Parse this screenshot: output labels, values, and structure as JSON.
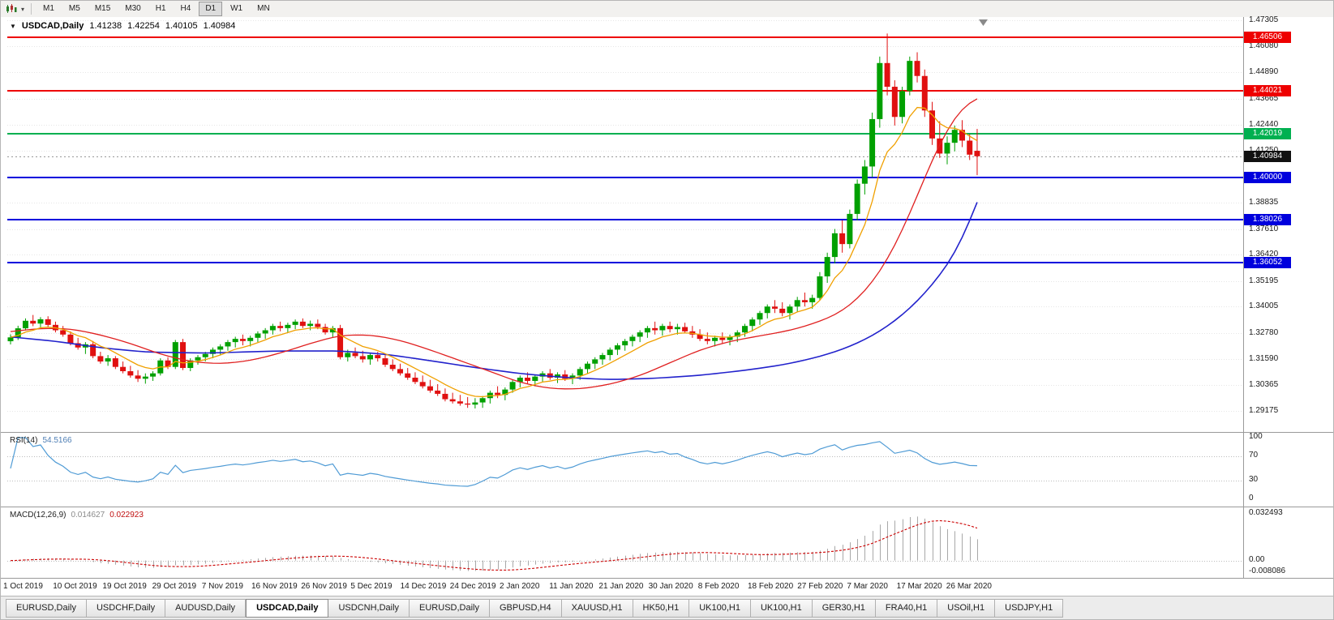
{
  "toolbar": {
    "timeframes": [
      "M1",
      "M5",
      "M15",
      "M30",
      "H1",
      "H4",
      "D1",
      "W1",
      "MN"
    ],
    "active_timeframe": "D1",
    "icons": [
      "candlestick-chart-icon",
      "dropdown-arrow-icon"
    ]
  },
  "chart": {
    "header": {
      "symbol": "USDCAD,Daily",
      "open": "1.41238",
      "high": "1.42254",
      "low": "1.40105",
      "close": "1.40984"
    },
    "price_axis_labels": [
      "1.47305",
      "1.46080",
      "1.44890",
      "1.43665",
      "1.42440",
      "1.41250",
      "1.38835",
      "1.37610",
      "1.36420",
      "1.35195",
      "1.34005",
      "1.32780",
      "1.31590",
      "1.30365",
      "1.29175"
    ],
    "hlines": [
      {
        "price": 1.46506,
        "label": "1.46506",
        "color": "#ee0000"
      },
      {
        "price": 1.44021,
        "label": "1.44021",
        "color": "#ee0000"
      },
      {
        "price": 1.42019,
        "label": "1.42019",
        "color": "#00b050"
      },
      {
        "price": 1.4,
        "label": "1.40000",
        "color": "#0000dd"
      },
      {
        "price": 1.38026,
        "label": "1.38026",
        "color": "#0000dd"
      },
      {
        "price": 1.36052,
        "label": "1.36052",
        "color": "#0000dd"
      }
    ],
    "current_price": {
      "value": 1.40984,
      "label": "1.40984",
      "badge_color": "#111111"
    },
    "colors": {
      "bull": "#00a000",
      "bear": "#e01010",
      "ma_fast": "#f0a000",
      "ma_mid": "#e02020",
      "ma_slow": "#2222cc",
      "grid": "#e6e6e6",
      "current_line": "#999999"
    }
  },
  "chart_data": {
    "type": "candlestick",
    "title": "USDCAD,Daily",
    "y_range": {
      "top": 1.47446,
      "bottom": 1.2819
    },
    "x_tick_labels": [
      "1 Oct 2019",
      "10 Oct 2019",
      "19 Oct 2019",
      "29 Oct 2019",
      "7 Nov 2019",
      "16 Nov 2019",
      "26 Nov 2019",
      "5 Dec 2019",
      "14 Dec 2019",
      "24 Dec 2019",
      "2 Jan 2020",
      "11 Jan 2020",
      "21 Jan 2020",
      "30 Jan 2020",
      "8 Feb 2020",
      "18 Feb 2020",
      "27 Feb 2020",
      "7 Mar 2020",
      "17 Mar 2020",
      "26 Mar 2020"
    ],
    "candles": [
      [
        1.324,
        1.3272,
        1.3225,
        1.3258
      ],
      [
        1.3258,
        1.3312,
        1.3246,
        1.33
      ],
      [
        1.33,
        1.3346,
        1.329,
        1.3335
      ],
      [
        1.3335,
        1.3362,
        1.331,
        1.3322
      ],
      [
        1.3322,
        1.3352,
        1.3302,
        1.3342
      ],
      [
        1.3342,
        1.3356,
        1.3306,
        1.3316
      ],
      [
        1.3316,
        1.3331,
        1.3281,
        1.3291
      ],
      [
        1.3291,
        1.3311,
        1.3261,
        1.3271
      ],
      [
        1.3271,
        1.3286,
        1.3221,
        1.3231
      ],
      [
        1.3231,
        1.3256,
        1.3201,
        1.3211
      ],
      [
        1.3211,
        1.3236,
        1.3181,
        1.3226
      ],
      [
        1.3226,
        1.3241,
        1.3161,
        1.3171
      ],
      [
        1.3171,
        1.3191,
        1.3136,
        1.3146
      ],
      [
        1.3146,
        1.3176,
        1.3126,
        1.3161
      ],
      [
        1.3161,
        1.3171,
        1.3111,
        1.3121
      ],
      [
        1.3121,
        1.3146,
        1.3091,
        1.3101
      ],
      [
        1.3101,
        1.3126,
        1.3071,
        1.3081
      ],
      [
        1.3081,
        1.3106,
        1.3051,
        1.3066
      ],
      [
        1.3066,
        1.3091,
        1.3043,
        1.3076
      ],
      [
        1.3076,
        1.3101,
        1.3056,
        1.3091
      ],
      [
        1.3091,
        1.3161,
        1.3081,
        1.3151
      ],
      [
        1.3151,
        1.3166,
        1.3111,
        1.3121
      ],
      [
        1.3121,
        1.3246,
        1.3111,
        1.3236
      ],
      [
        1.3236,
        1.3251,
        1.3106,
        1.3116
      ],
      [
        1.3116,
        1.3161,
        1.3101,
        1.3151
      ],
      [
        1.3151,
        1.3176,
        1.3131,
        1.3166
      ],
      [
        1.3166,
        1.3191,
        1.3146,
        1.3181
      ],
      [
        1.3181,
        1.3211,
        1.3161,
        1.3201
      ],
      [
        1.3201,
        1.3226,
        1.3176,
        1.3216
      ],
      [
        1.3216,
        1.3246,
        1.3196,
        1.3236
      ],
      [
        1.3236,
        1.3261,
        1.3211,
        1.3251
      ],
      [
        1.3251,
        1.3271,
        1.3221,
        1.3241
      ],
      [
        1.3241,
        1.3266,
        1.3216,
        1.3256
      ],
      [
        1.3256,
        1.3286,
        1.3236,
        1.3276
      ],
      [
        1.3276,
        1.3301,
        1.3251,
        1.3291
      ],
      [
        1.3291,
        1.3321,
        1.3271,
        1.3311
      ],
      [
        1.3311,
        1.3331,
        1.3286,
        1.3301
      ],
      [
        1.3301,
        1.3326,
        1.3281,
        1.3316
      ],
      [
        1.3316,
        1.3341,
        1.3296,
        1.3331
      ],
      [
        1.3331,
        1.3346,
        1.3301,
        1.3311
      ],
      [
        1.3311,
        1.3336,
        1.3291,
        1.3321
      ],
      [
        1.3321,
        1.3341,
        1.3296,
        1.3306
      ],
      [
        1.3306,
        1.3321,
        1.3271,
        1.3281
      ],
      [
        1.3281,
        1.3311,
        1.3256,
        1.3301
      ],
      [
        1.3301,
        1.3316,
        1.3156,
        1.3166
      ],
      [
        1.3166,
        1.3201,
        1.3146,
        1.3186
      ],
      [
        1.3186,
        1.3211,
        1.3161,
        1.3171
      ],
      [
        1.3171,
        1.3196,
        1.3141,
        1.3156
      ],
      [
        1.3156,
        1.3186,
        1.3131,
        1.3176
      ],
      [
        1.3176,
        1.3191,
        1.3146,
        1.3161
      ],
      [
        1.3161,
        1.3176,
        1.3121,
        1.3131
      ],
      [
        1.3131,
        1.3156,
        1.3101,
        1.3111
      ],
      [
        1.3111,
        1.3136,
        1.3081,
        1.3091
      ],
      [
        1.3091,
        1.3116,
        1.3061,
        1.3071
      ],
      [
        1.3071,
        1.3096,
        1.3041,
        1.3051
      ],
      [
        1.3051,
        1.3081,
        1.3021,
        1.3031
      ],
      [
        1.3031,
        1.3061,
        1.3001,
        1.3011
      ],
      [
        1.3011,
        1.3041,
        1.2986,
        1.2996
      ],
      [
        1.2996,
        1.3021,
        1.2961,
        1.2971
      ],
      [
        1.2971,
        1.3001,
        1.2951,
        1.2961
      ],
      [
        1.2961,
        1.2991,
        1.2941,
        1.2951
      ],
      [
        1.2951,
        1.2981,
        1.2931,
        1.2946
      ],
      [
        1.2946,
        1.2976,
        1.2928,
        1.2956
      ],
      [
        1.2956,
        1.2986,
        1.2931,
        1.2976
      ],
      [
        1.2976,
        1.3011,
        1.2951,
        1.3001
      ],
      [
        1.3001,
        1.3031,
        1.2976,
        1.2991
      ],
      [
        1.2991,
        1.3026,
        1.2966,
        1.3016
      ],
      [
        1.3016,
        1.3061,
        1.3001,
        1.3051
      ],
      [
        1.3051,
        1.3081,
        1.3026,
        1.3071
      ],
      [
        1.3071,
        1.3096,
        1.3041,
        1.3056
      ],
      [
        1.3056,
        1.3086,
        1.3031,
        1.3076
      ],
      [
        1.3076,
        1.3101,
        1.3051,
        1.3091
      ],
      [
        1.3091,
        1.3111,
        1.3061,
        1.3071
      ],
      [
        1.3071,
        1.3096,
        1.3046,
        1.3086
      ],
      [
        1.3086,
        1.3106,
        1.3056,
        1.3066
      ],
      [
        1.3066,
        1.3091,
        1.3041,
        1.3081
      ],
      [
        1.3081,
        1.3121,
        1.3061,
        1.3111
      ],
      [
        1.3111,
        1.3146,
        1.3091,
        1.3136
      ],
      [
        1.3136,
        1.3166,
        1.3111,
        1.3156
      ],
      [
        1.3156,
        1.3186,
        1.3131,
        1.3176
      ],
      [
        1.3176,
        1.3211,
        1.3151,
        1.3201
      ],
      [
        1.3201,
        1.3231,
        1.3176,
        1.3221
      ],
      [
        1.3221,
        1.3251,
        1.3196,
        1.3241
      ],
      [
        1.3241,
        1.3271,
        1.3216,
        1.3261
      ],
      [
        1.3261,
        1.3291,
        1.3236,
        1.3281
      ],
      [
        1.3281,
        1.3311,
        1.3256,
        1.3301
      ],
      [
        1.3301,
        1.3331,
        1.3271,
        1.3291
      ],
      [
        1.3291,
        1.3321,
        1.3266,
        1.3311
      ],
      [
        1.3311,
        1.3331,
        1.3281,
        1.3296
      ],
      [
        1.3296,
        1.3321,
        1.3271,
        1.3306
      ],
      [
        1.3306,
        1.3326,
        1.3276,
        1.3286
      ],
      [
        1.3286,
        1.3311,
        1.3256,
        1.3271
      ],
      [
        1.3271,
        1.3296,
        1.3241,
        1.3251
      ],
      [
        1.3251,
        1.3281,
        1.3226,
        1.3241
      ],
      [
        1.3241,
        1.3266,
        1.3216,
        1.3256
      ],
      [
        1.3256,
        1.3281,
        1.3231,
        1.3246
      ],
      [
        1.3246,
        1.3271,
        1.3221,
        1.3261
      ],
      [
        1.3261,
        1.3291,
        1.3236,
        1.3281
      ],
      [
        1.3281,
        1.3321,
        1.3261,
        1.3311
      ],
      [
        1.3311,
        1.3351,
        1.3286,
        1.3341
      ],
      [
        1.3341,
        1.3381,
        1.3316,
        1.3371
      ],
      [
        1.3371,
        1.3411,
        1.3346,
        1.3401
      ],
      [
        1.3401,
        1.3431,
        1.3371,
        1.3391
      ],
      [
        1.3391,
        1.3421,
        1.3356,
        1.3371
      ],
      [
        1.3371,
        1.3411,
        1.3341,
        1.3401
      ],
      [
        1.3401,
        1.3446,
        1.3376,
        1.3431
      ],
      [
        1.3431,
        1.3466,
        1.3401,
        1.3421
      ],
      [
        1.3421,
        1.3456,
        1.3391,
        1.3441
      ],
      [
        1.3441,
        1.3561,
        1.3431,
        1.3541
      ],
      [
        1.3541,
        1.3651,
        1.3511,
        1.3631
      ],
      [
        1.3631,
        1.3761,
        1.3601,
        1.3741
      ],
      [
        1.3741,
        1.3801,
        1.3651,
        1.3691
      ],
      [
        1.3691,
        1.3851,
        1.3671,
        1.3831
      ],
      [
        1.3831,
        1.3991,
        1.3801,
        1.3971
      ],
      [
        1.3971,
        1.4081,
        1.3921,
        1.4051
      ],
      [
        1.4051,
        1.4301,
        1.4001,
        1.4271
      ],
      [
        1.4271,
        1.4561,
        1.4231,
        1.4531
      ],
      [
        1.4531,
        1.4668,
        1.4381,
        1.4421
      ],
      [
        1.4421,
        1.4451,
        1.4241,
        1.4281
      ],
      [
        1.4281,
        1.4421,
        1.4251,
        1.4401
      ],
      [
        1.4401,
        1.4561,
        1.4381,
        1.4541
      ],
      [
        1.4541,
        1.4581,
        1.4441,
        1.4471
      ],
      [
        1.4471,
        1.4501,
        1.4281,
        1.4311
      ],
      [
        1.4311,
        1.4351,
        1.4151,
        1.4181
      ],
      [
        1.4181,
        1.4261,
        1.4091,
        1.4111
      ],
      [
        1.4111,
        1.4191,
        1.4061,
        1.4161
      ],
      [
        1.4161,
        1.4241,
        1.4121,
        1.4221
      ],
      [
        1.4221,
        1.4266,
        1.4141,
        1.4171
      ],
      [
        1.4171,
        1.4201,
        1.4081,
        1.4106
      ],
      [
        1.41238,
        1.42254,
        1.40105,
        1.40984
      ]
    ],
    "overlays": {
      "ma_fast": {
        "name": "fast moving average",
        "type": "ema",
        "period": 8
      },
      "ma_mid": {
        "name": "mid moving average",
        "points": [
          [
            0,
            1.3285
          ],
          [
            4,
            1.33
          ],
          [
            8,
            1.3298
          ],
          [
            12,
            1.327
          ],
          [
            16,
            1.323
          ],
          [
            20,
            1.318
          ],
          [
            24,
            1.3145
          ],
          [
            28,
            1.3135
          ],
          [
            32,
            1.315
          ],
          [
            36,
            1.3185
          ],
          [
            40,
            1.323
          ],
          [
            44,
            1.3268
          ],
          [
            48,
            1.327
          ],
          [
            52,
            1.3245
          ],
          [
            56,
            1.32
          ],
          [
            60,
            1.315
          ],
          [
            64,
            1.31
          ],
          [
            68,
            1.3048
          ],
          [
            72,
            1.302
          ],
          [
            76,
            1.3018
          ],
          [
            80,
            1.304
          ],
          [
            84,
            1.308
          ],
          [
            88,
            1.314
          ],
          [
            92,
            1.32
          ],
          [
            96,
            1.324
          ],
          [
            100,
            1.3265
          ],
          [
            104,
            1.329
          ],
          [
            107,
            1.332
          ],
          [
            110,
            1.336
          ],
          [
            112,
            1.3405
          ],
          [
            114,
            1.347
          ],
          [
            116,
            1.356
          ],
          [
            118,
            1.368
          ],
          [
            120,
            1.383
          ],
          [
            122,
            1.4
          ],
          [
            124,
            1.416
          ],
          [
            126,
            1.428
          ],
          [
            128,
            1.436
          ],
          [
            129,
            1.4365
          ]
        ]
      },
      "ma_slow": {
        "name": "slow moving average",
        "points": [
          [
            0,
            1.326
          ],
          [
            6,
            1.324
          ],
          [
            12,
            1.321
          ],
          [
            18,
            1.319
          ],
          [
            26,
            1.3185
          ],
          [
            36,
            1.3195
          ],
          [
            44,
            1.3195
          ],
          [
            50,
            1.318
          ],
          [
            56,
            1.315
          ],
          [
            62,
            1.3118
          ],
          [
            68,
            1.309
          ],
          [
            74,
            1.3072
          ],
          [
            80,
            1.3062
          ],
          [
            86,
            1.3068
          ],
          [
            92,
            1.3082
          ],
          [
            98,
            1.3105
          ],
          [
            103,
            1.313
          ],
          [
            107,
            1.316
          ],
          [
            110,
            1.319
          ],
          [
            113,
            1.323
          ],
          [
            116,
            1.3285
          ],
          [
            119,
            1.336
          ],
          [
            122,
            1.346
          ],
          [
            125,
            1.359
          ],
          [
            127,
            1.371
          ],
          [
            129,
            1.3885
          ]
        ]
      }
    }
  },
  "rsi": {
    "name": "RSI(14)",
    "value": "54.5166",
    "period": 14,
    "axis_labels": [
      "100",
      "70",
      "30",
      "0"
    ],
    "level_lines": [
      70,
      30
    ],
    "line_color": "#4f9bd5"
  },
  "macd": {
    "name": "MACD(12,26,9)",
    "value_main": "0.014627",
    "value_signal": "0.022923",
    "fast": 12,
    "slow": 26,
    "signal": 9,
    "axis_max": "0.032493",
    "axis_zero": "0.00",
    "axis_min": "-0.008086",
    "hist_color": "#a8a8a8",
    "signal_color": "#cc0000"
  },
  "bottom_tabs": {
    "items": [
      "EURUSD,Daily",
      "USDCHF,Daily",
      "AUDUSD,Daily",
      "USDCAD,Daily",
      "USDCNH,Daily",
      "EURUSD,Daily",
      "GBPUSD,H4",
      "XAUUSD,H1",
      "HK50,H1",
      "UK100,H1",
      "UK100,H1",
      "GER30,H1",
      "FRA40,H1",
      "USOil,H1",
      "USDJPY,H1"
    ],
    "active_index": 3
  }
}
